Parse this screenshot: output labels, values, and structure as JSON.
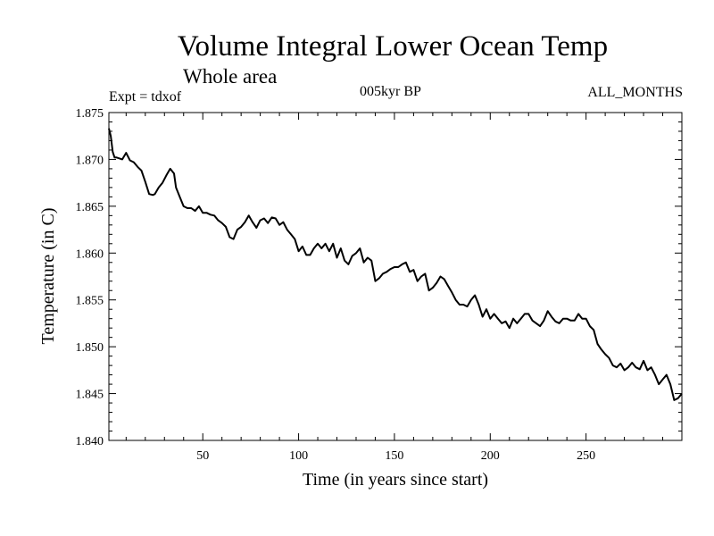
{
  "chart_data": {
    "type": "line",
    "title": "Volume Integral Lower Ocean Temp",
    "subtitle": "Whole area",
    "annotations": {
      "experiment": "Expt = tdxof",
      "period": "005kyr BP",
      "months": "ALL_MONTHS"
    },
    "xlabel": "Time (in years since start)",
    "ylabel": "Temperature (in C)",
    "xlim": [
      1,
      300
    ],
    "ylim": [
      1.84,
      1.875
    ],
    "xticks": [
      50,
      100,
      150,
      200,
      250
    ],
    "xtick_labels": [
      "50",
      "100",
      "150",
      "200",
      "250"
    ],
    "yticks": [
      1.84,
      1.845,
      1.85,
      1.855,
      1.86,
      1.865,
      1.87,
      1.875
    ],
    "ytick_labels": [
      "1.840",
      "1.845",
      "1.850",
      "1.855",
      "1.860",
      "1.865",
      "1.870",
      "1.875"
    ],
    "grid": false,
    "series": [
      {
        "x": [
          1,
          2,
          3,
          4,
          5,
          8,
          10,
          12,
          14,
          16,
          18,
          20,
          22,
          24,
          25,
          27,
          29,
          31,
          33,
          35,
          36,
          38,
          40,
          42,
          44,
          46,
          48,
          50,
          52,
          54,
          56,
          58,
          60,
          62,
          64,
          66,
          68,
          70,
          72,
          74,
          76,
          78,
          80,
          82,
          84,
          86,
          88,
          90,
          92,
          94,
          96,
          98,
          100,
          102,
          104,
          106,
          108,
          110,
          112,
          114,
          116,
          118,
          120,
          122,
          124,
          126,
          128,
          130,
          132,
          134,
          136,
          138,
          140,
          142,
          144,
          146,
          148,
          150,
          152,
          154,
          156,
          158,
          160,
          162,
          164,
          166,
          168,
          170,
          172,
          174,
          176,
          178,
          180,
          182,
          184,
          186,
          188,
          190,
          192,
          194,
          196,
          198,
          200,
          202,
          204,
          206,
          208,
          210,
          212,
          214,
          216,
          218,
          220,
          222,
          224,
          226,
          228,
          230,
          232,
          234,
          236,
          238,
          240,
          242,
          244,
          246,
          248,
          250,
          252,
          254,
          256,
          258,
          260,
          262,
          264,
          266,
          268,
          270,
          272,
          274,
          276,
          278,
          280,
          282,
          284,
          286,
          288,
          290,
          292,
          294,
          296,
          298,
          300
        ],
        "y": [
          1.8733,
          1.8725,
          1.8708,
          1.8702,
          1.8702,
          1.87,
          1.8707,
          1.8699,
          1.8697,
          1.8692,
          1.8688,
          1.8676,
          1.8663,
          1.8662,
          1.8663,
          1.867,
          1.8675,
          1.8683,
          1.869,
          1.8685,
          1.867,
          1.866,
          1.865,
          1.8648,
          1.8648,
          1.8645,
          1.865,
          1.8643,
          1.8643,
          1.8641,
          1.864,
          1.8635,
          1.8632,
          1.8628,
          1.8617,
          1.8615,
          1.8625,
          1.8628,
          1.8633,
          1.864,
          1.8633,
          1.8627,
          1.8635,
          1.8637,
          1.8632,
          1.8638,
          1.8637,
          1.863,
          1.8633,
          1.8625,
          1.862,
          1.8615,
          1.8602,
          1.8607,
          1.8598,
          1.8598,
          1.8605,
          1.861,
          1.8605,
          1.861,
          1.8602,
          1.861,
          1.8595,
          1.8605,
          1.8592,
          1.8588,
          1.8597,
          1.86,
          1.8605,
          1.859,
          1.8595,
          1.8592,
          1.857,
          1.8573,
          1.8578,
          1.858,
          1.8583,
          1.8585,
          1.8585,
          1.8588,
          1.859,
          1.858,
          1.8582,
          1.857,
          1.8575,
          1.8578,
          1.856,
          1.8563,
          1.8568,
          1.8575,
          1.8572,
          1.8565,
          1.8558,
          1.855,
          1.8545,
          1.8545,
          1.8543,
          1.855,
          1.8555,
          1.8545,
          1.8532,
          1.854,
          1.853,
          1.8535,
          1.853,
          1.8525,
          1.8527,
          1.852,
          1.853,
          1.8525,
          1.853,
          1.8535,
          1.8535,
          1.8528,
          1.8525,
          1.8522,
          1.8528,
          1.8538,
          1.8532,
          1.8527,
          1.8525,
          1.853,
          1.853,
          1.8528,
          1.8528,
          1.8535,
          1.853,
          1.853,
          1.8522,
          1.8518,
          1.8503,
          1.8497,
          1.8492,
          1.8488,
          1.848,
          1.8478,
          1.8482,
          1.8475,
          1.8478,
          1.8483,
          1.8478,
          1.8476,
          1.8485,
          1.8475,
          1.8478,
          1.847,
          1.846,
          1.8465,
          1.847,
          1.846,
          1.8443,
          1.8445,
          1.845
        ]
      }
    ]
  }
}
